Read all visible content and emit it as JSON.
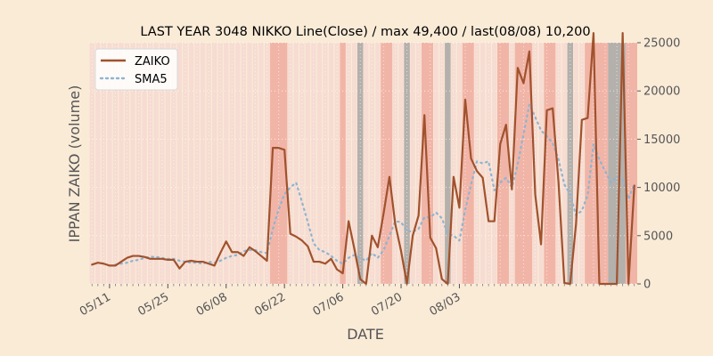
{
  "chart_data": {
    "type": "line",
    "title": "LAST YEAR 3048 NIKKO Line(Close) / max 49,400 / last(08/08) 10,200",
    "xlabel": "DATE",
    "ylabel": "IPPAN ZAIKO (volume)",
    "ylim": [
      0,
      25000
    ],
    "yticks": [
      "0",
      "5000",
      "10000",
      "15000",
      "20000",
      "25000"
    ],
    "xticks": [
      {
        "label": "05/11",
        "index": 3
      },
      {
        "label": "05/25",
        "index": 13
      },
      {
        "label": "06/08",
        "index": 23
      },
      {
        "label": "06/22",
        "index": 33
      },
      {
        "label": "07/06",
        "index": 43
      },
      {
        "label": "07/20",
        "index": 53
      },
      {
        "label": "08/03",
        "index": 63
      }
    ],
    "y_axis_position": "right",
    "grid": true,
    "legend_position": "top-left",
    "colors": {
      "background": "#faebd7",
      "zaiko": "#a0522d",
      "sma5": "#8fb4d0",
      "band_light": "#f6dcd2",
      "band_medium": "#f1b5a8",
      "band_gray": "#b4b0ac"
    },
    "series": [
      {
        "name": "ZAIKO",
        "style": "solid",
        "values": [
          2000,
          2200,
          2100,
          1900,
          1900,
          2300,
          2700,
          2900,
          2900,
          2800,
          2600,
          2600,
          2600,
          2500,
          2500,
          1600,
          2300,
          2400,
          2300,
          2300,
          2100,
          1900,
          3200,
          4400,
          3300,
          3300,
          2900,
          3800,
          3400,
          2900,
          2400,
          14100,
          14100,
          13900,
          5200,
          4900,
          4500,
          3900,
          2300,
          2300,
          2100,
          2600,
          1500,
          1100,
          6500,
          3600,
          500,
          0,
          5000,
          3800,
          7300,
          11100,
          6200,
          3400,
          0,
          5000,
          7100,
          17500,
          4800,
          3700,
          500,
          0,
          11100,
          7900,
          19100,
          13000,
          11700,
          11000,
          6500,
          6500,
          14500,
          16500,
          9800,
          22400,
          20800,
          24100,
          9300,
          4100,
          18000,
          18200,
          10500,
          100,
          0,
          6200,
          17000,
          17200,
          26000,
          0,
          0,
          0,
          0,
          26000,
          0,
          10200
        ]
      },
      {
        "name": "SMA5",
        "style": "dotted",
        "values": [
          null,
          null,
          null,
          null,
          2000,
          2100,
          2200,
          2400,
          2500,
          2700,
          2800,
          2800,
          2700,
          2600,
          2600,
          2400,
          2300,
          2200,
          2200,
          2100,
          2300,
          2200,
          2400,
          2700,
          2900,
          3000,
          3400,
          3500,
          3500,
          3300,
          3200,
          5700,
          7700,
          9300,
          10000,
          10500,
          8500,
          6400,
          4200,
          3500,
          3300,
          2900,
          2400,
          2100,
          2700,
          3000,
          2700,
          2400,
          3200,
          2700,
          3500,
          5000,
          6500,
          6400,
          5500,
          5400,
          5700,
          6900,
          6900,
          7400,
          6800,
          5200,
          5000,
          4500,
          7700,
          10300,
          12700,
          12500,
          12700,
          9700,
          10500,
          11000,
          10000,
          12400,
          15500,
          18600,
          17300,
          15900,
          15300,
          14600,
          12900,
          10300,
          9300,
          7100,
          7600,
          9200,
          14500,
          12900,
          11700,
          10500,
          11100,
          10800,
          8800,
          10400
        ]
      }
    ],
    "bands": [
      {
        "start": 31,
        "end": 33,
        "color": "band_medium"
      },
      {
        "start": 43,
        "end": 43,
        "color": "band_medium"
      },
      {
        "start": 46,
        "end": 46,
        "color": "band_gray"
      },
      {
        "start": 50,
        "end": 51,
        "color": "band_medium"
      },
      {
        "start": 54,
        "end": 54,
        "color": "band_gray"
      },
      {
        "start": 57,
        "end": 58,
        "color": "band_medium"
      },
      {
        "start": 61,
        "end": 61,
        "color": "band_gray"
      },
      {
        "start": 64,
        "end": 65,
        "color": "band_medium"
      },
      {
        "start": 70,
        "end": 71,
        "color": "band_medium"
      },
      {
        "start": 73,
        "end": 75,
        "color": "band_medium"
      },
      {
        "start": 78,
        "end": 79,
        "color": "band_medium"
      },
      {
        "start": 82,
        "end": 82,
        "color": "band_gray"
      },
      {
        "start": 85,
        "end": 88,
        "color": "band_medium"
      },
      {
        "start": 89,
        "end": 91,
        "color": "band_gray"
      },
      {
        "start": 92,
        "end": 93,
        "color": "band_medium"
      }
    ]
  }
}
